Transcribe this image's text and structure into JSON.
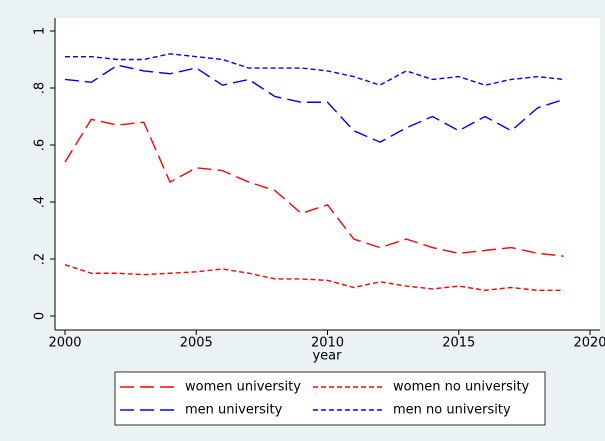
{
  "chart_data": {
    "type": "line",
    "x_label": "year",
    "x": [
      2000,
      2001,
      2002,
      2003,
      2004,
      2005,
      2006,
      2007,
      2008,
      2009,
      2010,
      2011,
      2012,
      2013,
      2014,
      2015,
      2016,
      2017,
      2018,
      2019
    ],
    "series": [
      {
        "name": "women university",
        "color": "#ff0000",
        "line_style": "longdash",
        "values": [
          0.54,
          0.69,
          0.67,
          0.68,
          0.47,
          0.52,
          0.51,
          0.47,
          0.44,
          0.36,
          0.39,
          0.27,
          0.24,
          0.27,
          0.24,
          0.22,
          0.23,
          0.24,
          0.22,
          0.21
        ]
      },
      {
        "name": "women no university",
        "color": "#ff0000",
        "line_style": "shortdash",
        "values": [
          0.18,
          0.15,
          0.15,
          0.145,
          0.15,
          0.155,
          0.165,
          0.15,
          0.13,
          0.13,
          0.125,
          0.1,
          0.12,
          0.105,
          0.095,
          0.105,
          0.09,
          0.1,
          0.09,
          0.09
        ]
      },
      {
        "name": "men university",
        "color": "#0000ff",
        "line_style": "longdash",
        "values": [
          0.83,
          0.82,
          0.88,
          0.86,
          0.85,
          0.87,
          0.81,
          0.83,
          0.77,
          0.75,
          0.75,
          0.65,
          0.61,
          0.66,
          0.7,
          0.65,
          0.7,
          0.65,
          0.73,
          0.76
        ]
      },
      {
        "name": "men no university",
        "color": "#0000ff",
        "line_style": "shortdash",
        "values": [
          0.91,
          0.91,
          0.9,
          0.9,
          0.92,
          0.91,
          0.9,
          0.87,
          0.87,
          0.87,
          0.86,
          0.84,
          0.81,
          0.86,
          0.83,
          0.84,
          0.81,
          0.83,
          0.84,
          0.83
        ]
      }
    ],
    "xlim": [
      2000,
      2020
    ],
    "xticks": [
      2000,
      2005,
      2010,
      2015,
      2020
    ],
    "ylim": [
      0,
      1
    ],
    "yticks": [
      0,
      {
        "value": 0.2,
        "label": ".2"
      },
      {
        "value": 0.4,
        "label": ".4"
      },
      {
        "value": 0.6,
        "label": ".6"
      },
      {
        "value": 0.8,
        "label": ".8"
      },
      1
    ],
    "grid": false,
    "legend_position": "bottom"
  }
}
